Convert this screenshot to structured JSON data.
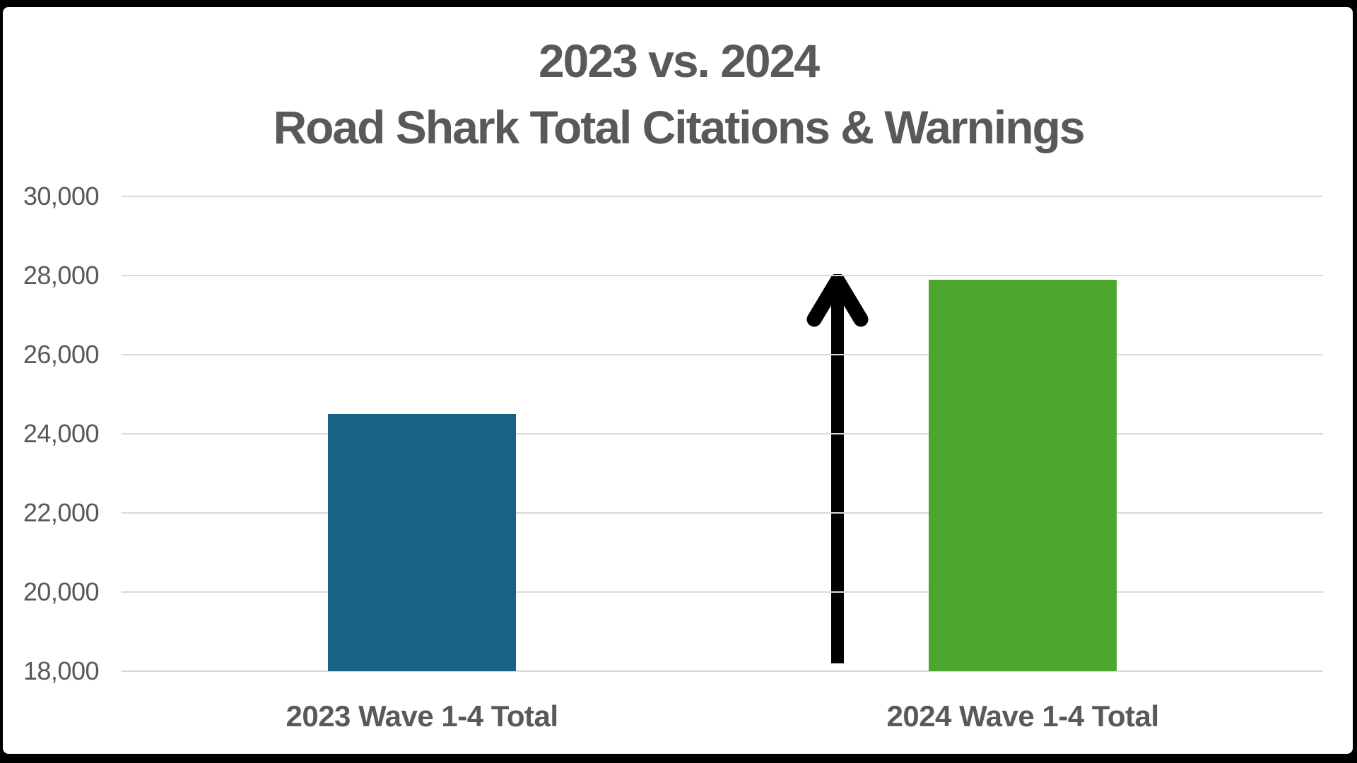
{
  "slide": {
    "background_color": "#000000",
    "chart_card_color": "#ffffff"
  },
  "chart_data": {
    "type": "bar",
    "title_line1": "2023 vs. 2024",
    "title_line2": "Road Shark Total Citations & Warnings",
    "title_color": "#595959",
    "categories": [
      "2023 Wave 1-4 Total",
      "2024 Wave 1-4 Total"
    ],
    "values": [
      24500,
      27900
    ],
    "bar_colors": [
      "#1a6284",
      "#4da72e"
    ],
    "ylim": [
      18000,
      30000
    ],
    "ytick_step": 2000,
    "ytick_labels": [
      "30,000",
      "28,000",
      "26,000",
      "24,000",
      "22,000",
      "20,000",
      "18,000"
    ],
    "grid": true,
    "gridline_color": "#d9d9d9",
    "axis_text_color": "#595959",
    "legend": "none",
    "annotation": {
      "type": "up-arrow",
      "color": "#000000",
      "position": "left of 2024 bar, spanning from axis baseline to ~28,000",
      "meaning": "increase from 2023 to 2024"
    }
  }
}
